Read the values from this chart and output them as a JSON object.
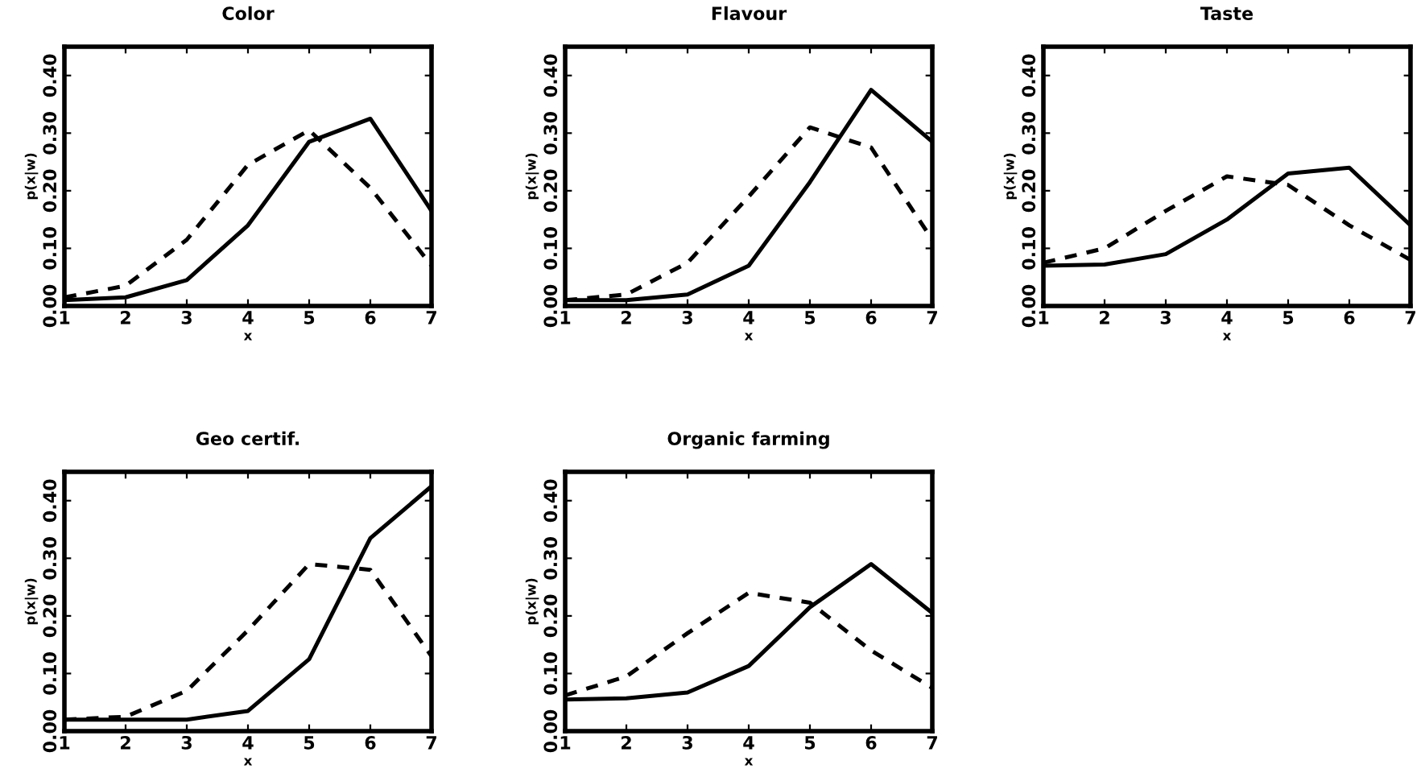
{
  "chart_data": [
    {
      "type": "line",
      "title": "Color",
      "xlabel": "x",
      "ylabel": "p(x|w)",
      "x": [
        1,
        2,
        3,
        4,
        5,
        6,
        7
      ],
      "xlim": [
        1,
        7
      ],
      "xticks": [
        1,
        2,
        3,
        4,
        5,
        6,
        7
      ],
      "ylim": [
        0,
        0.45
      ],
      "yticks": [
        {
          "value": 0,
          "label": "0.00"
        },
        {
          "value": 0.1,
          "label": "0.10"
        },
        {
          "value": 0.2,
          "label": "0.20"
        },
        {
          "value": 0.3,
          "label": "0.30"
        },
        {
          "value": 0.4,
          "label": "0.40"
        }
      ],
      "grid": false,
      "legend": false,
      "marker": "none",
      "series": [
        {
          "color": "#000000",
          "line_style": "solid",
          "values": [
            0.01,
            0.015,
            0.045,
            0.14,
            0.285,
            0.325,
            0.165
          ]
        },
        {
          "color": "#000000",
          "line_style": "dashed",
          "values": [
            0.015,
            0.035,
            0.115,
            0.245,
            0.305,
            0.205,
            0.07
          ]
        }
      ]
    },
    {
      "type": "line",
      "title": "Flavour",
      "xlabel": "x",
      "ylabel": "p(x|w)",
      "x": [
        1,
        2,
        3,
        4,
        5,
        6,
        7
      ],
      "xlim": [
        1,
        7
      ],
      "xticks": [
        1,
        2,
        3,
        4,
        5,
        6,
        7
      ],
      "ylim": [
        0,
        0.45
      ],
      "yticks": [
        {
          "value": 0,
          "label": "0.00"
        },
        {
          "value": 0.1,
          "label": "0.10"
        },
        {
          "value": 0.2,
          "label": "0.20"
        },
        {
          "value": 0.3,
          "label": "0.30"
        },
        {
          "value": 0.4,
          "label": "0.40"
        }
      ],
      "grid": false,
      "legend": false,
      "marker": "none",
      "series": [
        {
          "color": "#000000",
          "line_style": "solid",
          "values": [
            0.01,
            0.01,
            0.02,
            0.07,
            0.215,
            0.375,
            0.285
          ]
        },
        {
          "color": "#000000",
          "line_style": "dashed",
          "values": [
            0.01,
            0.02,
            0.075,
            0.19,
            0.31,
            0.275,
            0.115
          ]
        }
      ]
    },
    {
      "type": "line",
      "title": "Taste",
      "xlabel": "x",
      "ylabel": "p(x|w)",
      "x": [
        1,
        2,
        3,
        4,
        5,
        6,
        7
      ],
      "xlim": [
        1,
        7
      ],
      "xticks": [
        1,
        2,
        3,
        4,
        5,
        6,
        7
      ],
      "ylim": [
        0,
        0.45
      ],
      "yticks": [
        {
          "value": 0,
          "label": "0.00"
        },
        {
          "value": 0.1,
          "label": "0.10"
        },
        {
          "value": 0.2,
          "label": "0.20"
        },
        {
          "value": 0.3,
          "label": "0.30"
        },
        {
          "value": 0.4,
          "label": "0.40"
        }
      ],
      "grid": false,
      "legend": false,
      "marker": "none",
      "series": [
        {
          "color": "#000000",
          "line_style": "solid",
          "values": [
            0.07,
            0.072,
            0.09,
            0.15,
            0.23,
            0.24,
            0.14
          ]
        },
        {
          "color": "#000000",
          "line_style": "dashed",
          "values": [
            0.075,
            0.1,
            0.165,
            0.225,
            0.21,
            0.14,
            0.08
          ]
        }
      ]
    },
    {
      "type": "line",
      "title": "Geo certif.",
      "xlabel": "x",
      "ylabel": "p(x|w)",
      "x": [
        1,
        2,
        3,
        4,
        5,
        6,
        7
      ],
      "xlim": [
        1,
        7
      ],
      "xticks": [
        1,
        2,
        3,
        4,
        5,
        6,
        7
      ],
      "ylim": [
        0,
        0.45
      ],
      "yticks": [
        {
          "value": 0,
          "label": "0.00"
        },
        {
          "value": 0.1,
          "label": "0.10"
        },
        {
          "value": 0.2,
          "label": "0.20"
        },
        {
          "value": 0.3,
          "label": "0.30"
        },
        {
          "value": 0.4,
          "label": "0.40"
        }
      ],
      "grid": false,
      "legend": false,
      "marker": "none",
      "series": [
        {
          "color": "#000000",
          "line_style": "solid",
          "values": [
            0.02,
            0.02,
            0.02,
            0.035,
            0.125,
            0.335,
            0.425
          ]
        },
        {
          "color": "#000000",
          "line_style": "dashed",
          "values": [
            0.02,
            0.025,
            0.07,
            0.175,
            0.29,
            0.28,
            0.13
          ]
        }
      ]
    },
    {
      "type": "line",
      "title": "Organic farming",
      "xlabel": "x",
      "ylabel": "p(x|w)",
      "x": [
        1,
        2,
        3,
        4,
        5,
        6,
        7
      ],
      "xlim": [
        1,
        7
      ],
      "xticks": [
        1,
        2,
        3,
        4,
        5,
        6,
        7
      ],
      "ylim": [
        0,
        0.45
      ],
      "yticks": [
        {
          "value": 0,
          "label": "0.00"
        },
        {
          "value": 0.1,
          "label": "0.10"
        },
        {
          "value": 0.2,
          "label": "0.20"
        },
        {
          "value": 0.3,
          "label": "0.30"
        },
        {
          "value": 0.4,
          "label": "0.40"
        }
      ],
      "grid": false,
      "legend": false,
      "marker": "none",
      "series": [
        {
          "color": "#000000",
          "line_style": "solid",
          "values": [
            0.055,
            0.057,
            0.067,
            0.113,
            0.215,
            0.29,
            0.205
          ]
        },
        {
          "color": "#000000",
          "line_style": "dashed",
          "values": [
            0.062,
            0.095,
            0.17,
            0.24,
            0.223,
            0.14,
            0.075
          ]
        }
      ]
    }
  ]
}
